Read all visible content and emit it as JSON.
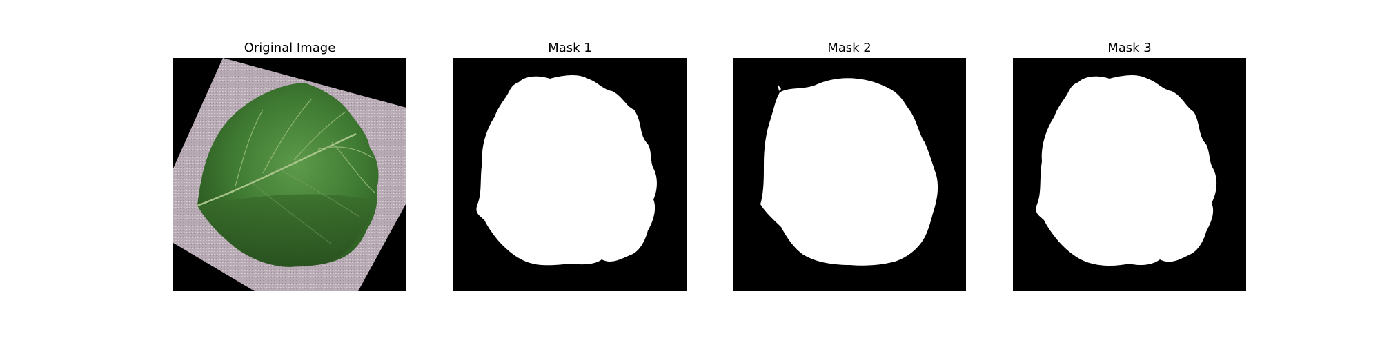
{
  "figure": {
    "background": "#ffffff",
    "panels": [
      {
        "title": "Original Image",
        "kind": "photo",
        "content": "leaf",
        "colors": {
          "background": "#000000",
          "paper": "#b8aab4",
          "leaf": "#3f7a32",
          "vein": "#a8c48a"
        }
      },
      {
        "title": "Mask 1",
        "kind": "binary-mask",
        "colors": {
          "background": "#000000",
          "foreground": "#ffffff"
        }
      },
      {
        "title": "Mask 2",
        "kind": "binary-mask",
        "colors": {
          "background": "#000000",
          "foreground": "#ffffff"
        }
      },
      {
        "title": "Mask 3",
        "kind": "binary-mask",
        "colors": {
          "background": "#000000",
          "foreground": "#ffffff"
        }
      }
    ]
  }
}
